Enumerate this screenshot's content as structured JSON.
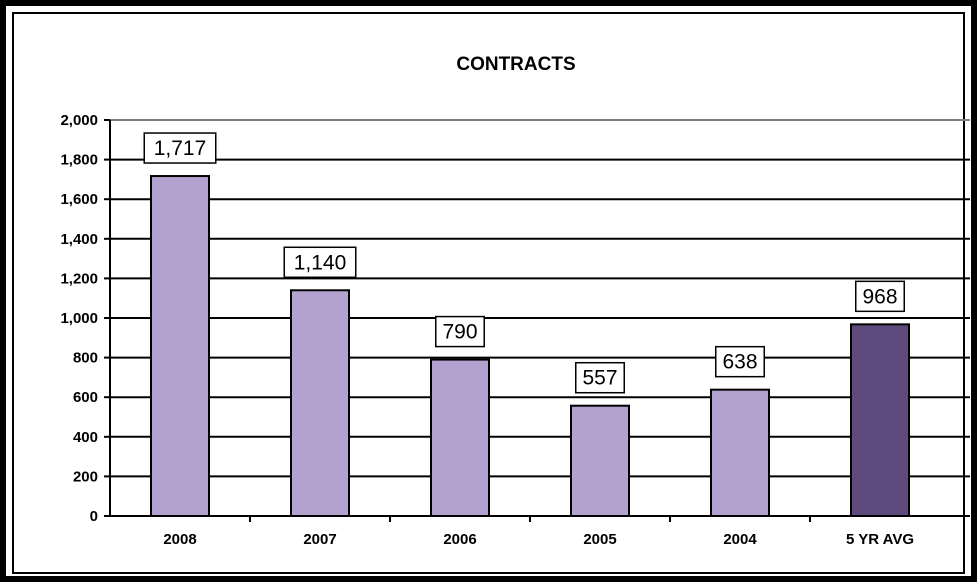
{
  "chart_data": {
    "type": "bar",
    "title": "CONTRACTS",
    "categories": [
      "2008",
      "2007",
      "2006",
      "2005",
      "2004",
      "5 YR AVG"
    ],
    "values": [
      1717,
      1140,
      790,
      557,
      638,
      968
    ],
    "value_labels": [
      "1,717",
      "1,140",
      "790",
      "557",
      "638",
      "968"
    ],
    "ylim": [
      0,
      2000
    ],
    "yticks": [
      0,
      200,
      400,
      600,
      800,
      1000,
      1200,
      1400,
      1600,
      1800,
      2000
    ],
    "ytick_labels": [
      "0",
      "200",
      "400",
      "600",
      "800",
      "1,000",
      "1,200",
      "1,400",
      "1,600",
      "1,800",
      "2,000"
    ],
    "grid": true,
    "bar_colors": [
      "#b3a2cf",
      "#b3a2cf",
      "#b3a2cf",
      "#b3a2cf",
      "#b3a2cf",
      "#5f4a7d"
    ]
  }
}
